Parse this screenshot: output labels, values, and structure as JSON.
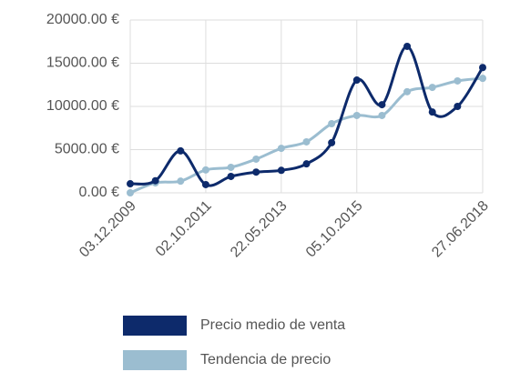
{
  "chart_data": {
    "type": "line",
    "categories": [
      "03.12.2009",
      null,
      null,
      "02.10.2011",
      null,
      null,
      "22.05.2013",
      null,
      null,
      "05.10.2015",
      null,
      null,
      null,
      null,
      "27.06.2018"
    ],
    "series": [
      {
        "name": "Precio medio de venta",
        "color": "#0d2a6b",
        "values": [
          1050,
          1400,
          4850,
          950,
          1900,
          2400,
          2600,
          3350,
          5800,
          13050,
          10200,
          16950,
          9350,
          10000,
          14500
        ]
      },
      {
        "name": "Tendencia de precio",
        "color": "#9bbdd0",
        "values": [
          0,
          1150,
          1350,
          2650,
          2950,
          3900,
          5150,
          5900,
          8000,
          8950,
          8950,
          11700,
          12200,
          12950,
          13250
        ]
      }
    ],
    "ylim": [
      0,
      20000
    ],
    "yticks": [
      {
        "value": 0,
        "label": "0.00 €"
      },
      {
        "value": 5000,
        "label": "5000.00 €"
      },
      {
        "value": 10000,
        "label": "10000.00 €"
      },
      {
        "value": 15000,
        "label": "15000.00 €"
      },
      {
        "value": 20000,
        "label": "20000.00 €"
      }
    ],
    "grid": true
  }
}
